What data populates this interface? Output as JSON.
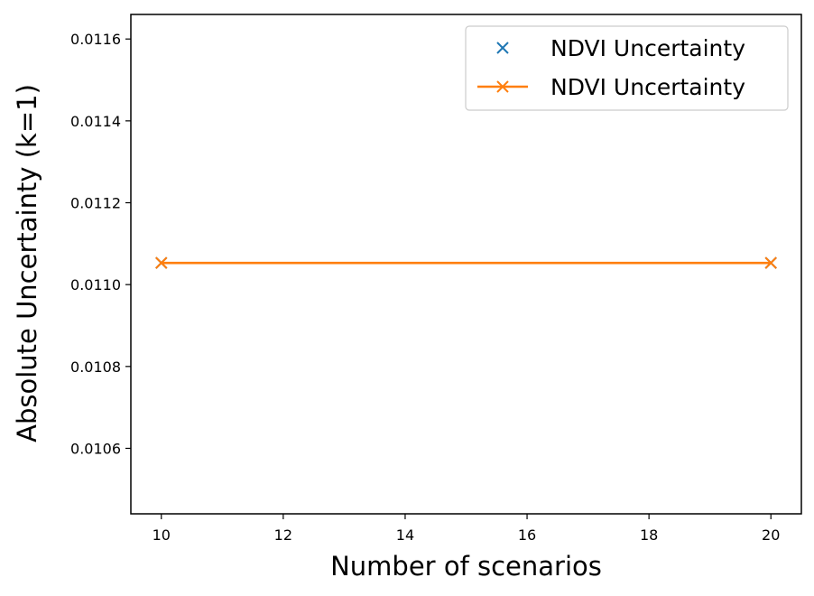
{
  "chart_data": {
    "type": "line",
    "xlabel": "Number of scenarios",
    "ylabel": "Absolute Uncertainty (k=1)",
    "xlim": [
      9.5,
      20.5
    ],
    "ylim": [
      0.01044,
      0.01166
    ],
    "xticks": [
      10,
      12,
      14,
      16,
      18,
      20
    ],
    "yticks": [
      0.0106,
      0.0108,
      0.011,
      0.0112,
      0.0114,
      0.0116
    ],
    "ytick_labels": [
      "0.0106",
      "0.0108",
      "0.0110",
      "0.0112",
      "0.0114",
      "0.0116"
    ],
    "grid": false,
    "legend_position": "top-right",
    "series": [
      {
        "name": "NDVI Uncertainty",
        "style": "markers",
        "marker": "x",
        "color": "#1f77b4",
        "x": [
          10,
          20
        ],
        "y": [
          0.011053,
          0.011053
        ]
      },
      {
        "name": "NDVI Uncertainty",
        "style": "line+markers",
        "marker": "x",
        "color": "#ff7f0e",
        "x": [
          10,
          20
        ],
        "y": [
          0.011053,
          0.011053
        ]
      }
    ]
  }
}
